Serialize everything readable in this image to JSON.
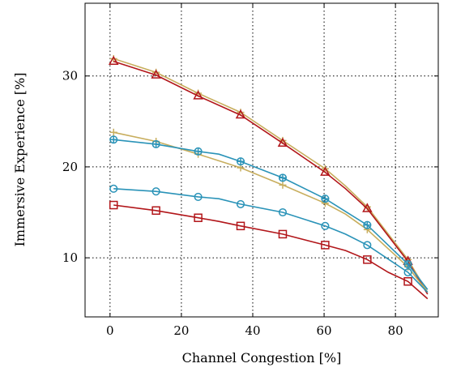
{
  "chart_data": {
    "type": "line",
    "xlabel": "Channel Congestion [%]",
    "ylabel": "Immersive Experience [%]",
    "xlim": [
      -7,
      92
    ],
    "ylim": [
      3.5,
      38
    ],
    "xticks": [
      0,
      20,
      40,
      60,
      80
    ],
    "yticks": [
      10,
      20,
      30
    ],
    "grid": true,
    "legend": "none",
    "series": [
      {
        "color": "#c8ae5e",
        "marker": "plus",
        "x": [
          1,
          12.9,
          24.7,
          36.6,
          48.4,
          60.3,
          66,
          72.1,
          83.5,
          89
        ],
        "y": [
          31.9,
          30.4,
          28.1,
          26.0,
          22.9,
          19.8,
          17.9,
          15.6,
          9.8,
          6.2
        ]
      },
      {
        "color": "#b2161a",
        "marker": "triangle",
        "x": [
          1,
          12.9,
          24.7,
          36.6,
          48.4,
          60.3,
          66,
          72.1,
          83.5,
          89
        ],
        "y": [
          31.6,
          30.1,
          27.8,
          25.7,
          22.6,
          19.4,
          17.6,
          15.4,
          9.6,
          6.0
        ]
      },
      {
        "color": "#c8ae5e",
        "marker": "plus",
        "x": [
          1,
          12.9,
          24.7,
          36.6,
          48.4,
          60.3,
          66,
          72.1,
          83.5,
          89
        ],
        "y": [
          23.8,
          22.8,
          21.4,
          19.9,
          18.0,
          16.0,
          14.8,
          13.1,
          9.0,
          6.2
        ]
      },
      {
        "color": "#2a93b8",
        "marker": "circle-plus",
        "x": [
          1,
          12.9,
          24.7,
          30.5,
          36.6,
          48.4,
          60.3,
          66,
          72.1,
          83.5,
          89
        ],
        "y": [
          23.0,
          22.5,
          21.7,
          21.4,
          20.6,
          18.8,
          16.5,
          15.1,
          13.6,
          9.3,
          6.5
        ]
      },
      {
        "color": "#2a93b8",
        "marker": "circle",
        "x": [
          1,
          12.9,
          24.7,
          30.5,
          36.6,
          48.4,
          60.3,
          66,
          72.1,
          83.5,
          89
        ],
        "y": [
          17.6,
          17.3,
          16.7,
          16.5,
          15.9,
          15.0,
          13.5,
          12.6,
          11.4,
          8.4,
          6.2
        ]
      },
      {
        "color": "#b2161a",
        "marker": "square",
        "x": [
          1,
          12.9,
          24.7,
          30.5,
          36.6,
          48.4,
          60.3,
          66,
          72.1,
          78,
          83.5,
          89
        ],
        "y": [
          15.8,
          15.2,
          14.4,
          14.0,
          13.5,
          12.6,
          11.4,
          10.8,
          9.8,
          8.4,
          7.4,
          5.5
        ]
      }
    ]
  }
}
